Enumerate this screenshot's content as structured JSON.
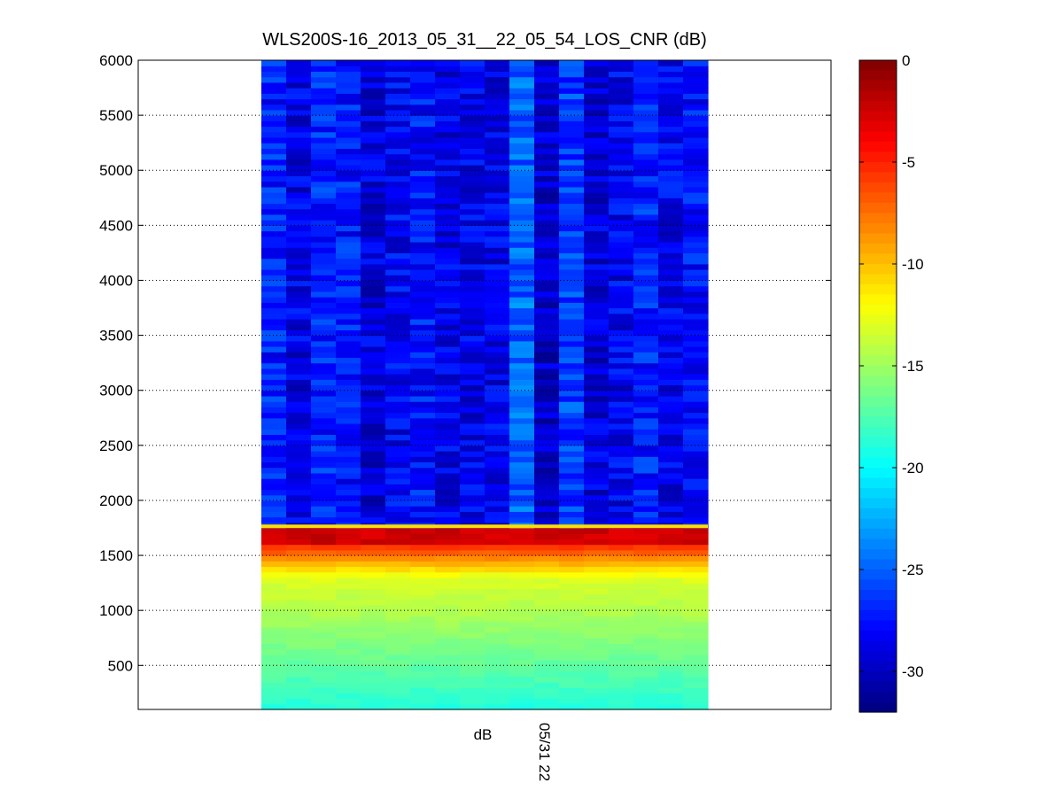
{
  "chart_data": {
    "type": "heatmap",
    "title": "WLS200S-16_2013_05_31__22_05_54_LOS_CNR (dB)",
    "xlabel": "dB",
    "x_tick_labels": [
      "05/31 22"
    ],
    "ylabel": "",
    "ylim": [
      100,
      6000
    ],
    "y_ticks": [
      500,
      1000,
      1500,
      2000,
      2500,
      3000,
      3500,
      4000,
      4500,
      5000,
      5500,
      6000
    ],
    "grid": "dotted horizontal",
    "colormap": "jet",
    "colorbar": {
      "range": [
        -32,
        0
      ],
      "ticks": [
        0,
        -5,
        -10,
        -15,
        -20,
        -25,
        -30
      ],
      "unit": "dB"
    },
    "columns": 18,
    "profile_description": [
      {
        "range_m": [
          100,
          1300
        ],
        "cnr_db": [
          -19,
          -13
        ]
      },
      {
        "range_m": [
          1300,
          1600
        ],
        "cnr_db": [
          -13,
          -6
        ]
      },
      {
        "range_m": [
          1600,
          1770
        ],
        "cnr_db": [
          -4,
          -1
        ]
      },
      {
        "range_m": [
          1770,
          6000
        ],
        "cnr_db": [
          -30,
          -22
        ]
      }
    ]
  },
  "colors": {
    "axes_border": "#000000",
    "background": "#ffffff",
    "grid": "#000000"
  }
}
